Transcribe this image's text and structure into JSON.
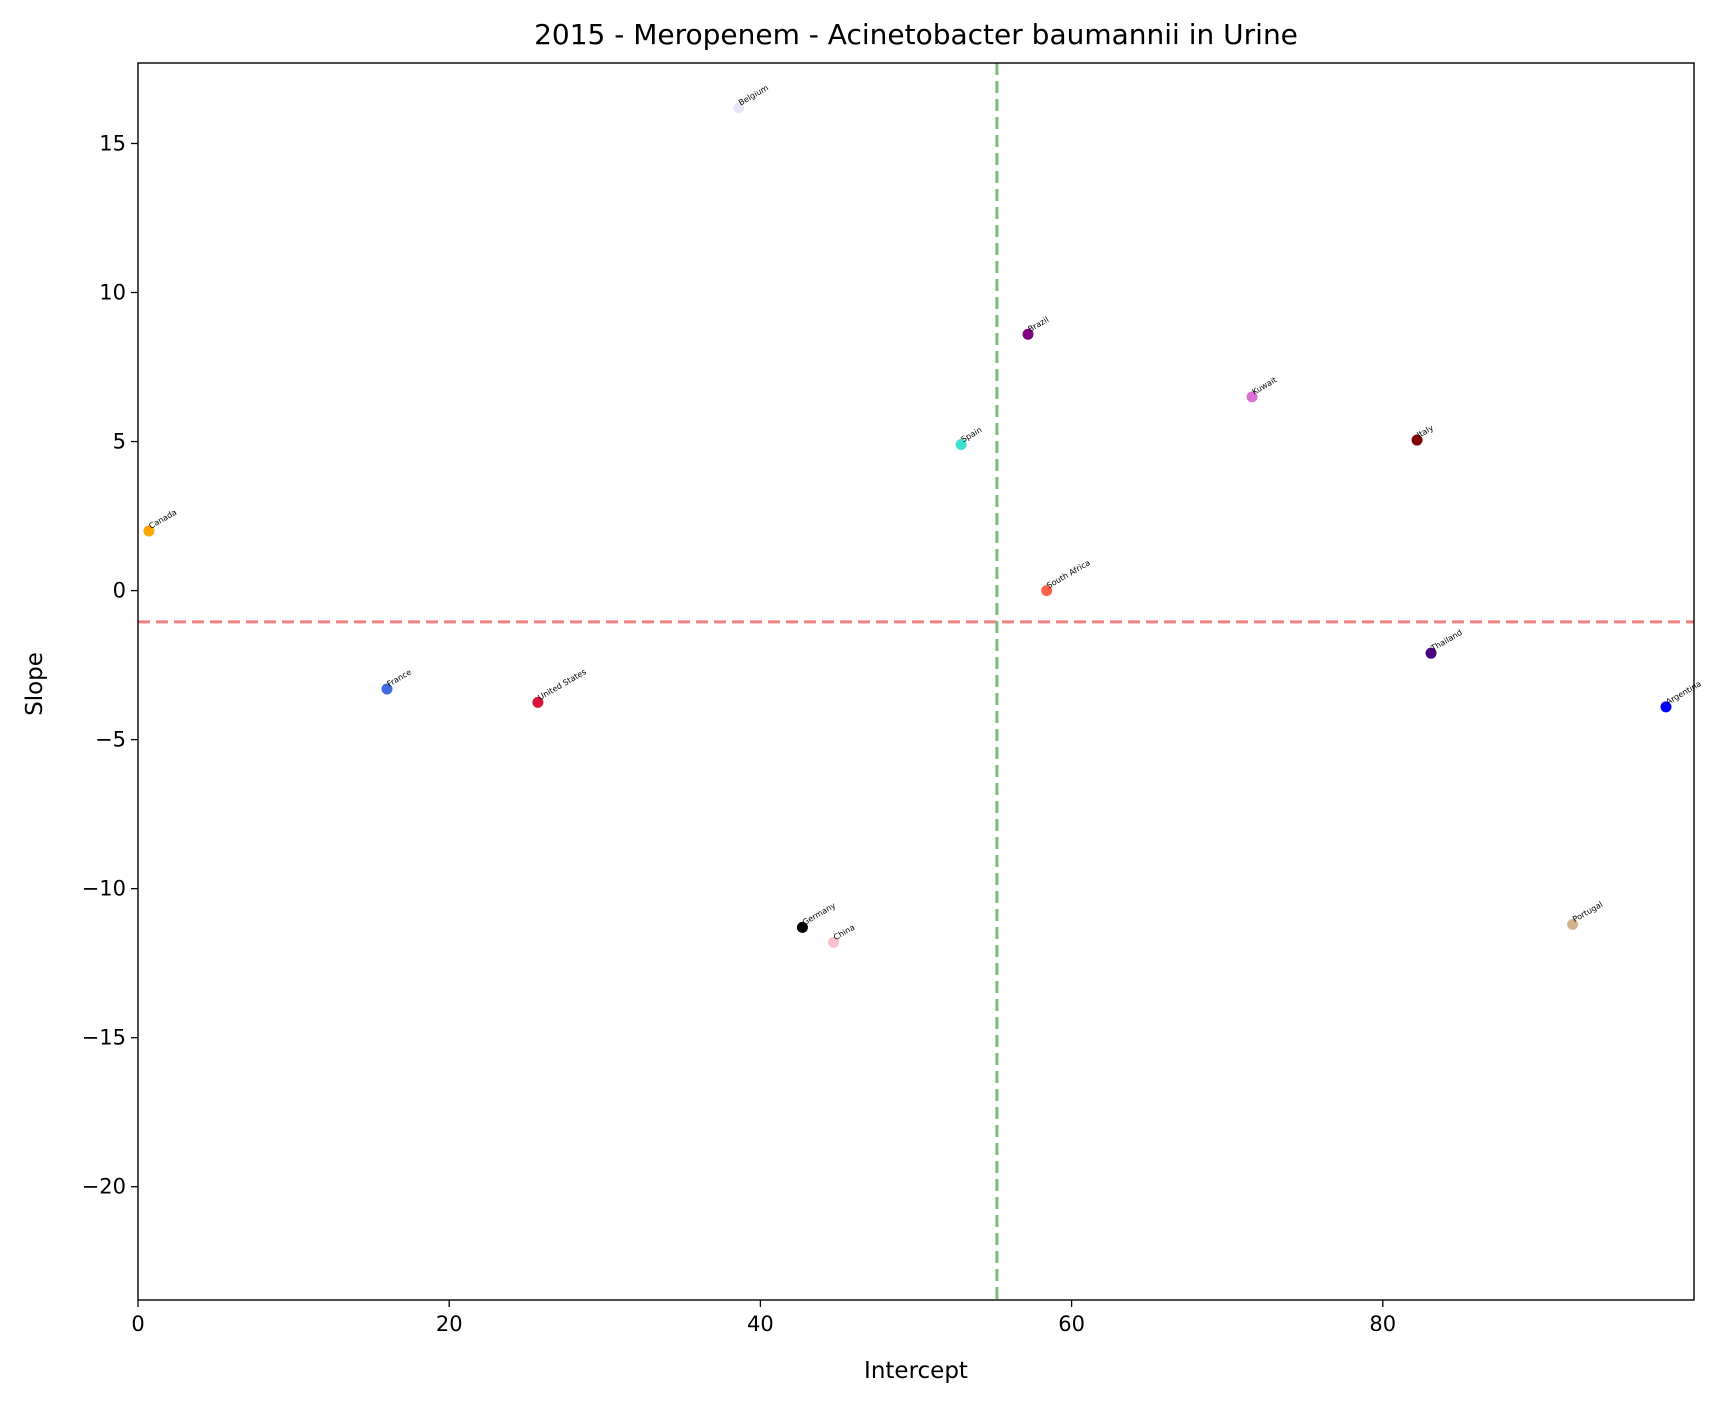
{
  "chart_data": {
    "type": "scatter",
    "title": "2015 - Meropenem - Acinetobacter baumannii in Urine",
    "xlabel": "Intercept",
    "ylabel": "Slope",
    "xlim": [
      0,
      100
    ],
    "ylim": [
      -23.8,
      17.7
    ],
    "xticks": [
      0,
      20,
      40,
      60,
      80
    ],
    "yticks": [
      15,
      10,
      5,
      0,
      -5,
      -10,
      -15,
      -20
    ],
    "ytick_labels": [
      "15",
      "10",
      "5",
      "0",
      "−5",
      "−10",
      "−15",
      "−20"
    ],
    "grid": false,
    "reference_lines": [
      {
        "orientation": "horizontal",
        "value": -1.05,
        "color": "#f08080",
        "style": "dashed"
      },
      {
        "orientation": "vertical",
        "value": 55.2,
        "color": "#77c077",
        "style": "dashed"
      }
    ],
    "points": [
      {
        "label": "Belgium",
        "x": 38.6,
        "y": 16.2,
        "color": "#e6e6fa"
      },
      {
        "label": "Brazil",
        "x": 57.2,
        "y": 8.6,
        "color": "#800080"
      },
      {
        "label": "Kuwait",
        "x": 71.6,
        "y": 6.5,
        "color": "#da70d6"
      },
      {
        "label": "Spain",
        "x": 52.9,
        "y": 4.9,
        "color": "#40e0d0"
      },
      {
        "label": "Italy",
        "x": 82.2,
        "y": 5.05,
        "color": "#800000"
      },
      {
        "label": "Canada",
        "x": 0.7,
        "y": 2.0,
        "color": "#ffa500"
      },
      {
        "label": "South Africa",
        "x": 58.4,
        "y": 0.0,
        "color": "#ff6347"
      },
      {
        "label": "Thailand",
        "x": 83.1,
        "y": -2.1,
        "color": "#4b0082"
      },
      {
        "label": "France",
        "x": 16.0,
        "y": -3.3,
        "color": "#4169e1"
      },
      {
        "label": "United States",
        "x": 25.7,
        "y": -3.75,
        "color": "#dc143c"
      },
      {
        "label": "Argentina",
        "x": 98.2,
        "y": -3.9,
        "color": "#0000ff"
      },
      {
        "label": "Germany",
        "x": 42.7,
        "y": -11.3,
        "color": "#000000"
      },
      {
        "label": "China",
        "x": 44.7,
        "y": -11.8,
        "color": "#ffc0cb"
      },
      {
        "label": "Portugal",
        "x": 92.2,
        "y": -11.2,
        "color": "#d2b48c"
      }
    ]
  }
}
